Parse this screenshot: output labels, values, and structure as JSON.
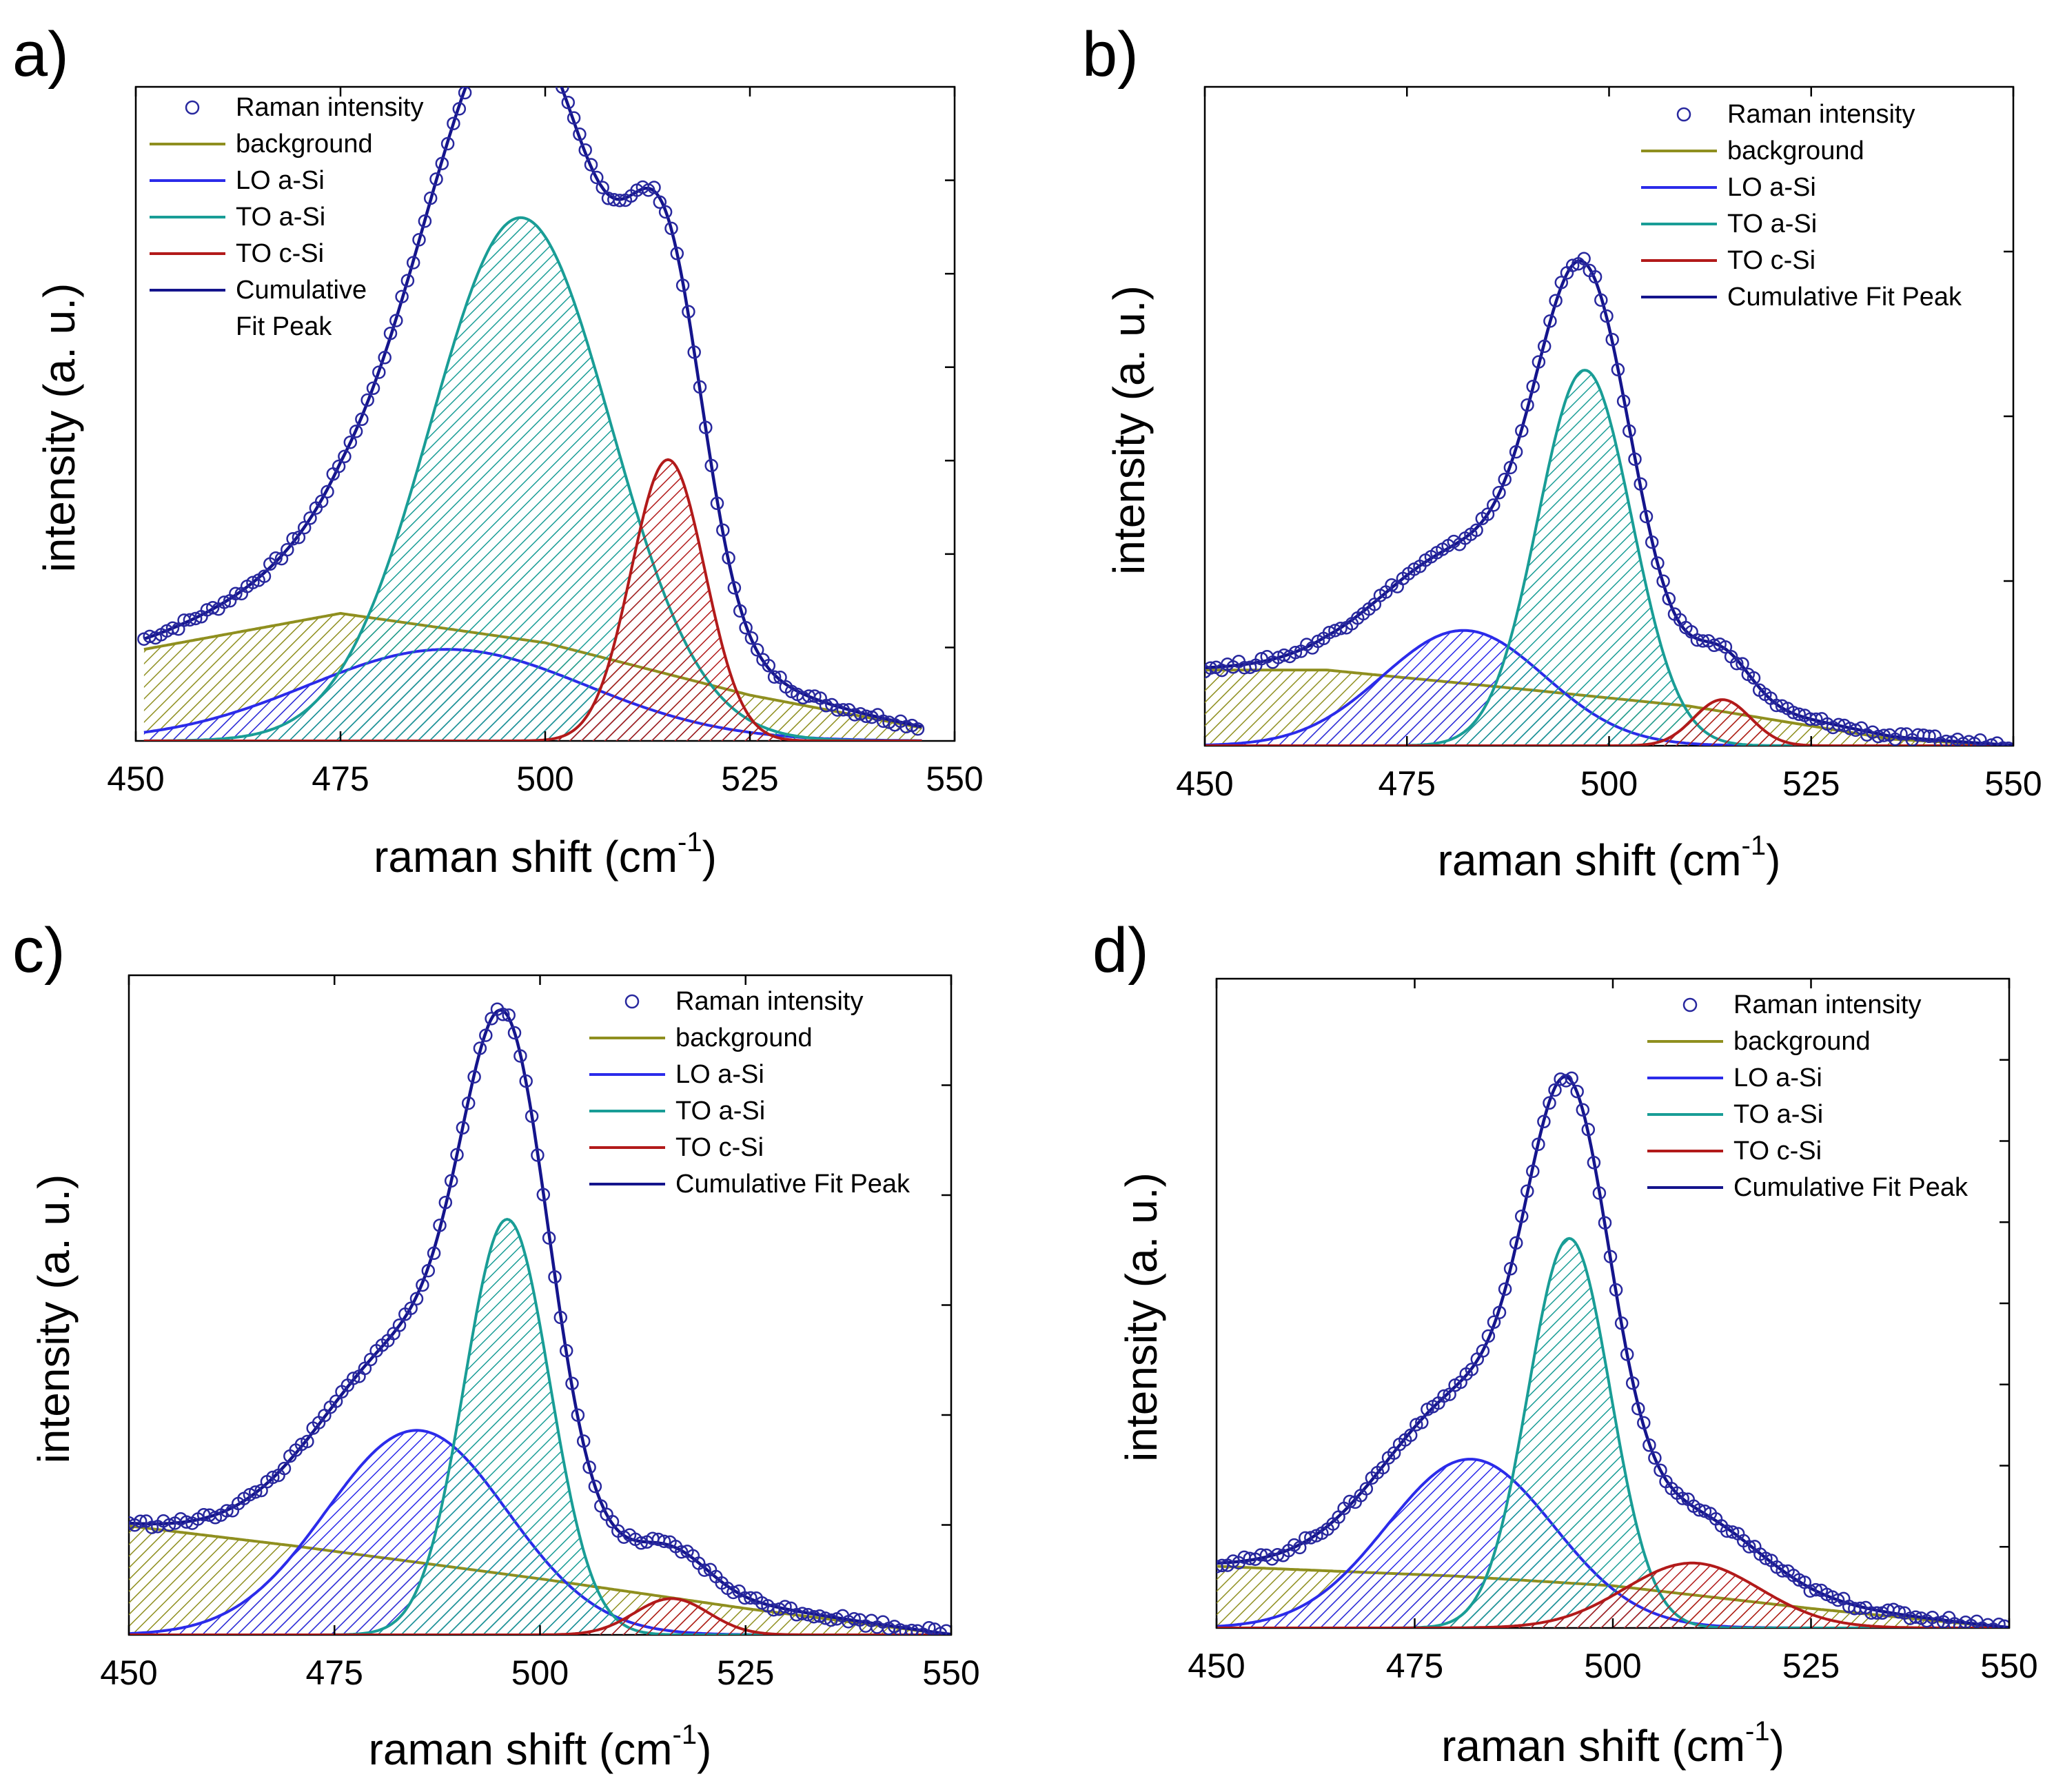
{
  "figure": {
    "description_panels": [
      "a)",
      "b)",
      "c)",
      "d)"
    ]
  },
  "chart_data": [
    {
      "panel": "a)",
      "type": "line",
      "xlabel": "raman shift (cm",
      "xlabel_sup": "-1",
      "xlabel_close": ")",
      "ylabel": "intensity (a. u.)",
      "xlim": [
        450,
        550
      ],
      "ylim": [
        0,
        1.0
      ],
      "xticks": [
        450,
        475,
        500,
        525,
        550
      ],
      "y_minor_ticks": 6,
      "legend_position": "top-left",
      "legend": [
        "Raman intensity",
        "background",
        "LO a-Si",
        "TO a-Si",
        "TO c-Si",
        "Cumulative",
        "Fit Peak"
      ],
      "data_x_range": [
        451,
        546
      ],
      "components": {
        "background": {
          "type": "poly",
          "points": [
            [
              451,
              0.14
            ],
            [
              475,
              0.195
            ],
            [
              500,
              0.15
            ],
            [
              525,
              0.07
            ],
            [
              546,
              0.02
            ]
          ]
        },
        "LO a-Si": {
          "type": "gauss",
          "center": 488,
          "amplitude": 0.14,
          "sigma": 17
        },
        "TO a-Si": {
          "type": "gauss",
          "center": 497,
          "amplitude": 0.8,
          "sigma": 11
        },
        "TO c-Si": {
          "type": "gauss",
          "center": 515,
          "amplitude": 0.43,
          "sigma": 4.5
        }
      },
      "cumulative_offset": 0.03,
      "scatter_noise": 0.006,
      "colors": {
        "background": "#8f8f1f",
        "LO a-Si": "#2b2bea",
        "TO a-Si": "#199d96",
        "TO c-Si": "#b21a1a",
        "cumulative": "#14148c",
        "points": "#28289e"
      }
    },
    {
      "panel": "b)",
      "type": "line",
      "xlabel": "raman shift (cm",
      "xlabel_sup": "-1",
      "xlabel_close": ")",
      "ylabel": "intensity (a. u.)",
      "xlim": [
        450,
        550
      ],
      "ylim": [
        0,
        1.0
      ],
      "xticks": [
        450,
        475,
        500,
        525,
        550
      ],
      "y_minor_ticks": 3,
      "legend_position": "top-right",
      "legend": [
        "Raman intensity",
        "background",
        "LO a-Si",
        "TO a-Si",
        "TO c-Si",
        "Cumulative Fit Peak"
      ],
      "data_x_range": [
        450,
        550
      ],
      "components": {
        "background": {
          "type": "poly",
          "points": [
            [
              450,
              0.115
            ],
            [
              465,
              0.115
            ],
            [
              490,
              0.085
            ],
            [
              510,
              0.06
            ],
            [
              535,
              0.01
            ],
            [
              550,
              0.0
            ]
          ]
        },
        "LO a-Si": {
          "type": "gauss",
          "center": 482,
          "amplitude": 0.175,
          "sigma": 10
        },
        "TO a-Si": {
          "type": "gauss",
          "center": 497,
          "amplitude": 0.57,
          "sigma": 5.8
        },
        "TO c-Si": {
          "type": "gauss",
          "center": 514,
          "amplitude": 0.07,
          "sigma": 3.5
        }
      },
      "cumulative_offset": 0.03,
      "scatter_noise": 0.006,
      "colors": {
        "background": "#8f8f1f",
        "LO a-Si": "#2b2bea",
        "TO a-Si": "#199d96",
        "TO c-Si": "#b21a1a",
        "cumulative": "#14148c",
        "points": "#28289e"
      }
    },
    {
      "panel": "c)",
      "type": "line",
      "xlabel": "raman shift (cm",
      "xlabel_sup": "-1",
      "xlabel_close": ")",
      "ylabel": "intensity (a. u.)",
      "xlim": [
        450,
        550
      ],
      "ylim": [
        0,
        1.0
      ],
      "xticks": [
        450,
        475,
        500,
        525,
        550
      ],
      "y_minor_ticks": 5,
      "legend_position": "top-right",
      "legend": [
        "Raman intensity",
        "background",
        "LO a-Si",
        "TO a-Si",
        "TO c-Si",
        "Cumulative Fit Peak"
      ],
      "data_x_range": [
        450,
        550
      ],
      "components": {
        "background": {
          "type": "poly",
          "points": [
            [
              450,
              0.165
            ],
            [
              470,
              0.135
            ],
            [
              500,
              0.085
            ],
            [
              525,
              0.04
            ],
            [
              550,
              0.0
            ]
          ]
        },
        "LO a-Si": {
          "type": "gauss",
          "center": 485,
          "amplitude": 0.31,
          "sigma": 11
        },
        "TO a-Si": {
          "type": "gauss",
          "center": 496,
          "amplitude": 0.63,
          "sigma": 5.2
        },
        "TO c-Si": {
          "type": "gauss",
          "center": 516,
          "amplitude": 0.055,
          "sigma": 4.5
        }
      },
      "cumulative_offset": 0.03,
      "scatter_noise": 0.006,
      "colors": {
        "background": "#8f8f1f",
        "LO a-Si": "#2b2bea",
        "TO a-Si": "#199d96",
        "TO c-Si": "#b21a1a",
        "cumulative": "#14148c",
        "points": "#28289e"
      }
    },
    {
      "panel": "d)",
      "type": "line",
      "xlabel": "raman shift (cm",
      "xlabel_sup": "-1",
      "xlabel_close": ")",
      "ylabel": "intensity (a. u.)",
      "xlim": [
        450,
        550
      ],
      "ylim": [
        0,
        1.0
      ],
      "xticks": [
        450,
        475,
        500,
        525,
        550
      ],
      "y_minor_ticks": 7,
      "legend_position": "top-right",
      "legend": [
        "Raman intensity",
        "background",
        "LO a-Si",
        "TO a-Si",
        "TO c-Si",
        "Cumulative Fit Peak"
      ],
      "data_x_range": [
        450,
        550
      ],
      "components": {
        "background": {
          "type": "poly",
          "points": [
            [
              450,
              0.095
            ],
            [
              480,
              0.08
            ],
            [
              500,
              0.065
            ],
            [
              525,
              0.03
            ],
            [
              550,
              0.0
            ]
          ]
        },
        "LO a-Si": {
          "type": "gauss",
          "center": 482,
          "amplitude": 0.26,
          "sigma": 10.5
        },
        "TO a-Si": {
          "type": "gauss",
          "center": 494.5,
          "amplitude": 0.6,
          "sigma": 5.2
        },
        "TO c-Si": {
          "type": "gauss",
          "center": 510,
          "amplitude": 0.1,
          "sigma": 8.5
        }
      },
      "cumulative_offset": 0.03,
      "scatter_noise": 0.006,
      "colors": {
        "background": "#8f8f1f",
        "LO a-Si": "#2b2bea",
        "TO a-Si": "#199d96",
        "TO c-Si": "#b21a1a",
        "cumulative": "#14148c",
        "points": "#28289e"
      }
    }
  ]
}
